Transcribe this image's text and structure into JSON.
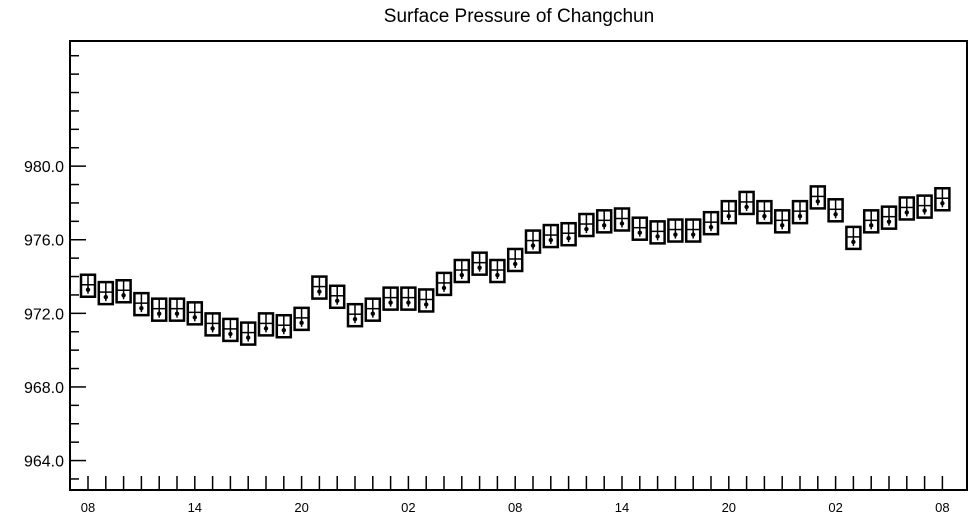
{
  "chart_data": {
    "type": "scatter",
    "title": "Surface Pressure of Changchun",
    "xlabel": "",
    "ylabel": "",
    "ylim": [
      962.4,
      986.8
    ],
    "y_ticks": [
      964.0,
      968.0,
      972.0,
      976.0,
      980.0
    ],
    "y_tick_labels": [
      "964.0",
      "968.0",
      "972.0",
      "976.0",
      "980.0"
    ],
    "x_tick_labels": [
      "08",
      "14",
      "20",
      "02",
      "08",
      "14",
      "20",
      "02",
      "08"
    ],
    "x_label_every": 6,
    "grid": false,
    "legend": "none",
    "marker": "boxed-glyph",
    "x": [
      0,
      1,
      2,
      3,
      4,
      5,
      6,
      7,
      8,
      9,
      10,
      11,
      12,
      13,
      14,
      15,
      16,
      17,
      18,
      19,
      20,
      21,
      22,
      23,
      24,
      25,
      26,
      27,
      28,
      29,
      30,
      31,
      32,
      33,
      34,
      35,
      36,
      37,
      38,
      39,
      40,
      41,
      42,
      43,
      44,
      45,
      46,
      47,
      48
    ],
    "values": [
      973.5,
      973.1,
      973.2,
      972.5,
      972.2,
      972.2,
      972.0,
      971.4,
      971.1,
      970.9,
      971.4,
      971.3,
      971.7,
      973.4,
      972.9,
      971.9,
      972.2,
      972.8,
      972.8,
      972.7,
      973.6,
      974.3,
      974.7,
      974.3,
      974.9,
      975.9,
      976.2,
      976.3,
      976.8,
      977.0,
      977.1,
      976.6,
      976.4,
      976.5,
      976.5,
      976.9,
      977.5,
      978.0,
      977.5,
      977.0,
      977.5,
      978.3,
      977.6,
      976.1,
      977.0,
      977.2,
      977.7,
      977.8,
      978.2
    ],
    "colors": {
      "marker": "#000000",
      "axis": "#000000",
      "background": "#ffffff"
    }
  }
}
